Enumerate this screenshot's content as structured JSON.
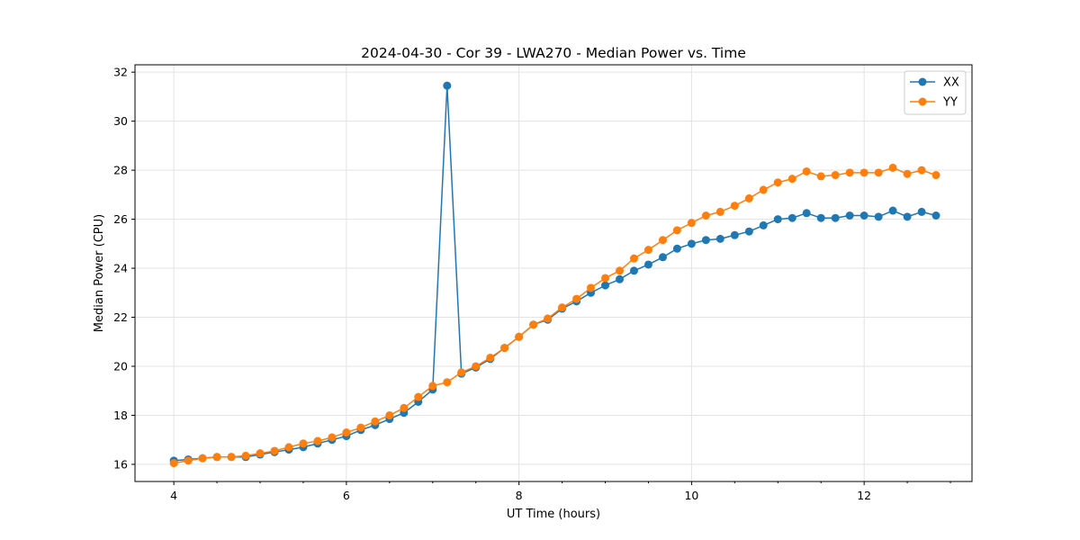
{
  "chart_data": {
    "type": "line",
    "title": "2024-04-30 - Cor 39 - LWA270 - Median Power vs. Time",
    "xlabel": "UT Time (hours)",
    "ylabel": "Median Power (CPU)",
    "xlim": [
      3.55,
      13.25
    ],
    "ylim": [
      15.3,
      32.3
    ],
    "xticks": [
      4,
      6,
      8,
      10,
      12
    ],
    "yticks": [
      16,
      18,
      20,
      22,
      24,
      26,
      28,
      30,
      32
    ],
    "grid": true,
    "legend_position": "top-right",
    "x": [
      4.0,
      4.167,
      4.333,
      4.5,
      4.667,
      4.833,
      5.0,
      5.167,
      5.333,
      5.5,
      5.667,
      5.833,
      6.0,
      6.167,
      6.333,
      6.5,
      6.667,
      6.833,
      7.0,
      7.167,
      7.333,
      7.5,
      7.667,
      7.833,
      8.0,
      8.167,
      8.333,
      8.5,
      8.667,
      8.833,
      9.0,
      9.167,
      9.333,
      9.5,
      9.667,
      9.833,
      10.0,
      10.167,
      10.333,
      10.5,
      10.667,
      10.833,
      11.0,
      11.167,
      11.333,
      11.5,
      11.667,
      11.833,
      12.0,
      12.167,
      12.333,
      12.5,
      12.667,
      12.833
    ],
    "series": [
      {
        "name": "XX",
        "color": "#1f77b4",
        "values": [
          16.15,
          16.2,
          16.25,
          16.3,
          16.3,
          16.3,
          16.4,
          16.5,
          16.6,
          16.7,
          16.85,
          17.0,
          17.15,
          17.4,
          17.6,
          17.85,
          18.1,
          18.55,
          19.05,
          31.45,
          19.7,
          19.95,
          20.3,
          20.75,
          21.2,
          21.7,
          21.9,
          22.35,
          22.65,
          23.0,
          23.3,
          23.55,
          23.9,
          24.15,
          24.45,
          24.8,
          25.0,
          25.15,
          25.2,
          25.35,
          25.5,
          25.75,
          26.0,
          26.05,
          26.25,
          26.05,
          26.05,
          26.15,
          26.15,
          26.1,
          26.35,
          26.1,
          26.3,
          26.15
        ]
      },
      {
        "name": "YY",
        "color": "#ff7f0e",
        "values": [
          16.05,
          16.15,
          16.25,
          16.3,
          16.3,
          16.35,
          16.45,
          16.55,
          16.7,
          16.85,
          16.95,
          17.1,
          17.3,
          17.5,
          17.75,
          18.0,
          18.3,
          18.75,
          19.2,
          19.35,
          19.75,
          20.0,
          20.35,
          20.75,
          21.2,
          21.7,
          21.95,
          22.4,
          22.75,
          23.2,
          23.6,
          23.9,
          24.4,
          24.75,
          25.15,
          25.55,
          25.85,
          26.15,
          26.3,
          26.55,
          26.85,
          27.2,
          27.5,
          27.65,
          27.95,
          27.75,
          27.8,
          27.9,
          27.9,
          27.9,
          28.1,
          27.85,
          28.0,
          27.8
        ]
      }
    ]
  }
}
